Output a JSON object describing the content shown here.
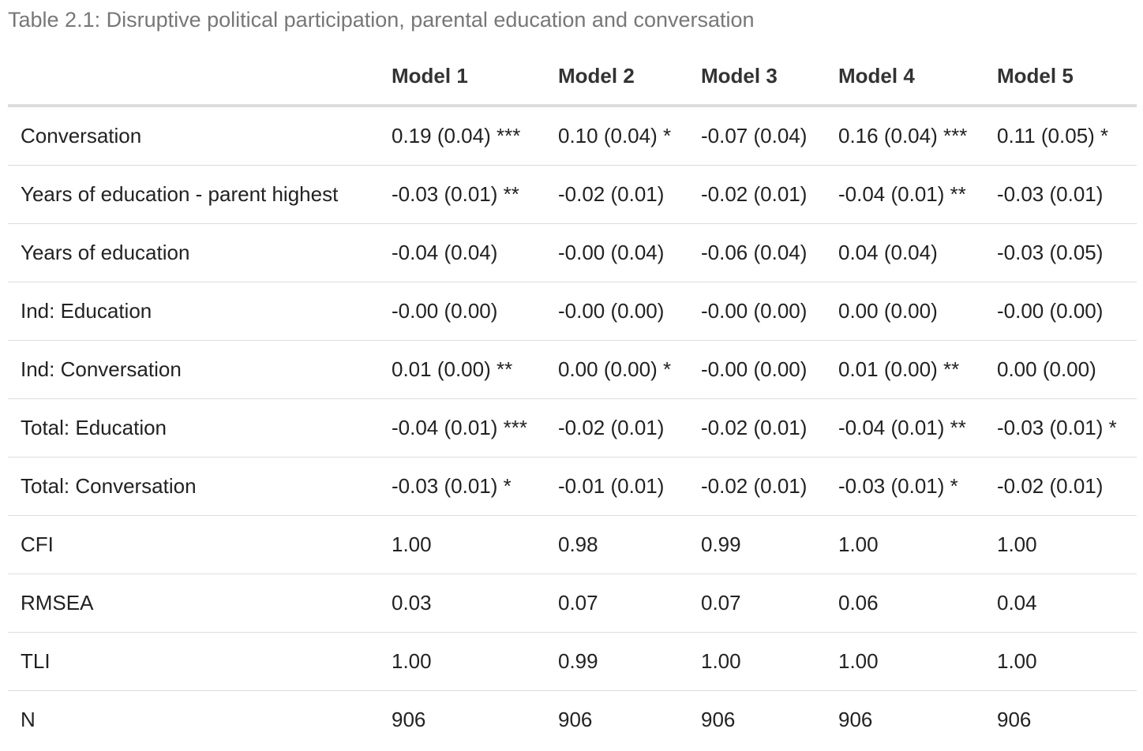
{
  "caption": "Table 2.1: Disruptive political participation, parental education and conversation",
  "table": {
    "corner_label": "",
    "headers": [
      "Model 1",
      "Model 2",
      "Model 3",
      "Model 4",
      "Model 5"
    ],
    "rows": [
      {
        "label": "Conversation",
        "cells": [
          "0.19 (0.04) ***",
          "0.10 (0.04) *",
          "-0.07 (0.04)",
          "0.16 (0.04) ***",
          "0.11 (0.05) *"
        ]
      },
      {
        "label": "Years of education - parent highest",
        "cells": [
          "-0.03 (0.01) **",
          "-0.02 (0.01)",
          "-0.02 (0.01)",
          "-0.04 (0.01) **",
          "-0.03 (0.01)"
        ]
      },
      {
        "label": "Years of education",
        "cells": [
          "-0.04 (0.04)",
          "-0.00 (0.04)",
          "-0.06 (0.04)",
          "0.04 (0.04)",
          "-0.03 (0.05)"
        ]
      },
      {
        "label": "Ind: Education",
        "cells": [
          "-0.00 (0.00)",
          "-0.00 (0.00)",
          "-0.00 (0.00)",
          "0.00 (0.00)",
          "-0.00 (0.00)"
        ]
      },
      {
        "label": "Ind: Conversation",
        "cells": [
          "0.01 (0.00) **",
          "0.00 (0.00) *",
          "-0.00 (0.00)",
          "0.01 (0.00) **",
          "0.00 (0.00)"
        ]
      },
      {
        "label": "Total: Education",
        "cells": [
          "-0.04 (0.01) ***",
          "-0.02 (0.01)",
          "-0.02 (0.01)",
          "-0.04 (0.01) **",
          "-0.03 (0.01) *"
        ]
      },
      {
        "label": "Total: Conversation",
        "cells": [
          "-0.03 (0.01) *",
          "-0.01 (0.01)",
          "-0.02 (0.01)",
          "-0.03 (0.01) *",
          "-0.02 (0.01)"
        ]
      },
      {
        "label": "CFI",
        "cells": [
          "1.00",
          "0.98",
          "0.99",
          "1.00",
          "1.00"
        ]
      },
      {
        "label": "RMSEA",
        "cells": [
          "0.03",
          "0.07",
          "0.07",
          "0.06",
          "0.04"
        ]
      },
      {
        "label": "TLI",
        "cells": [
          "1.00",
          "0.99",
          "1.00",
          "1.00",
          "1.00"
        ]
      },
      {
        "label": "N",
        "cells": [
          "906",
          "906",
          "906",
          "906",
          "906"
        ]
      }
    ]
  },
  "colors": {
    "caption_text": "#777777",
    "body_text": "#222222",
    "rule": "#dddddd"
  }
}
